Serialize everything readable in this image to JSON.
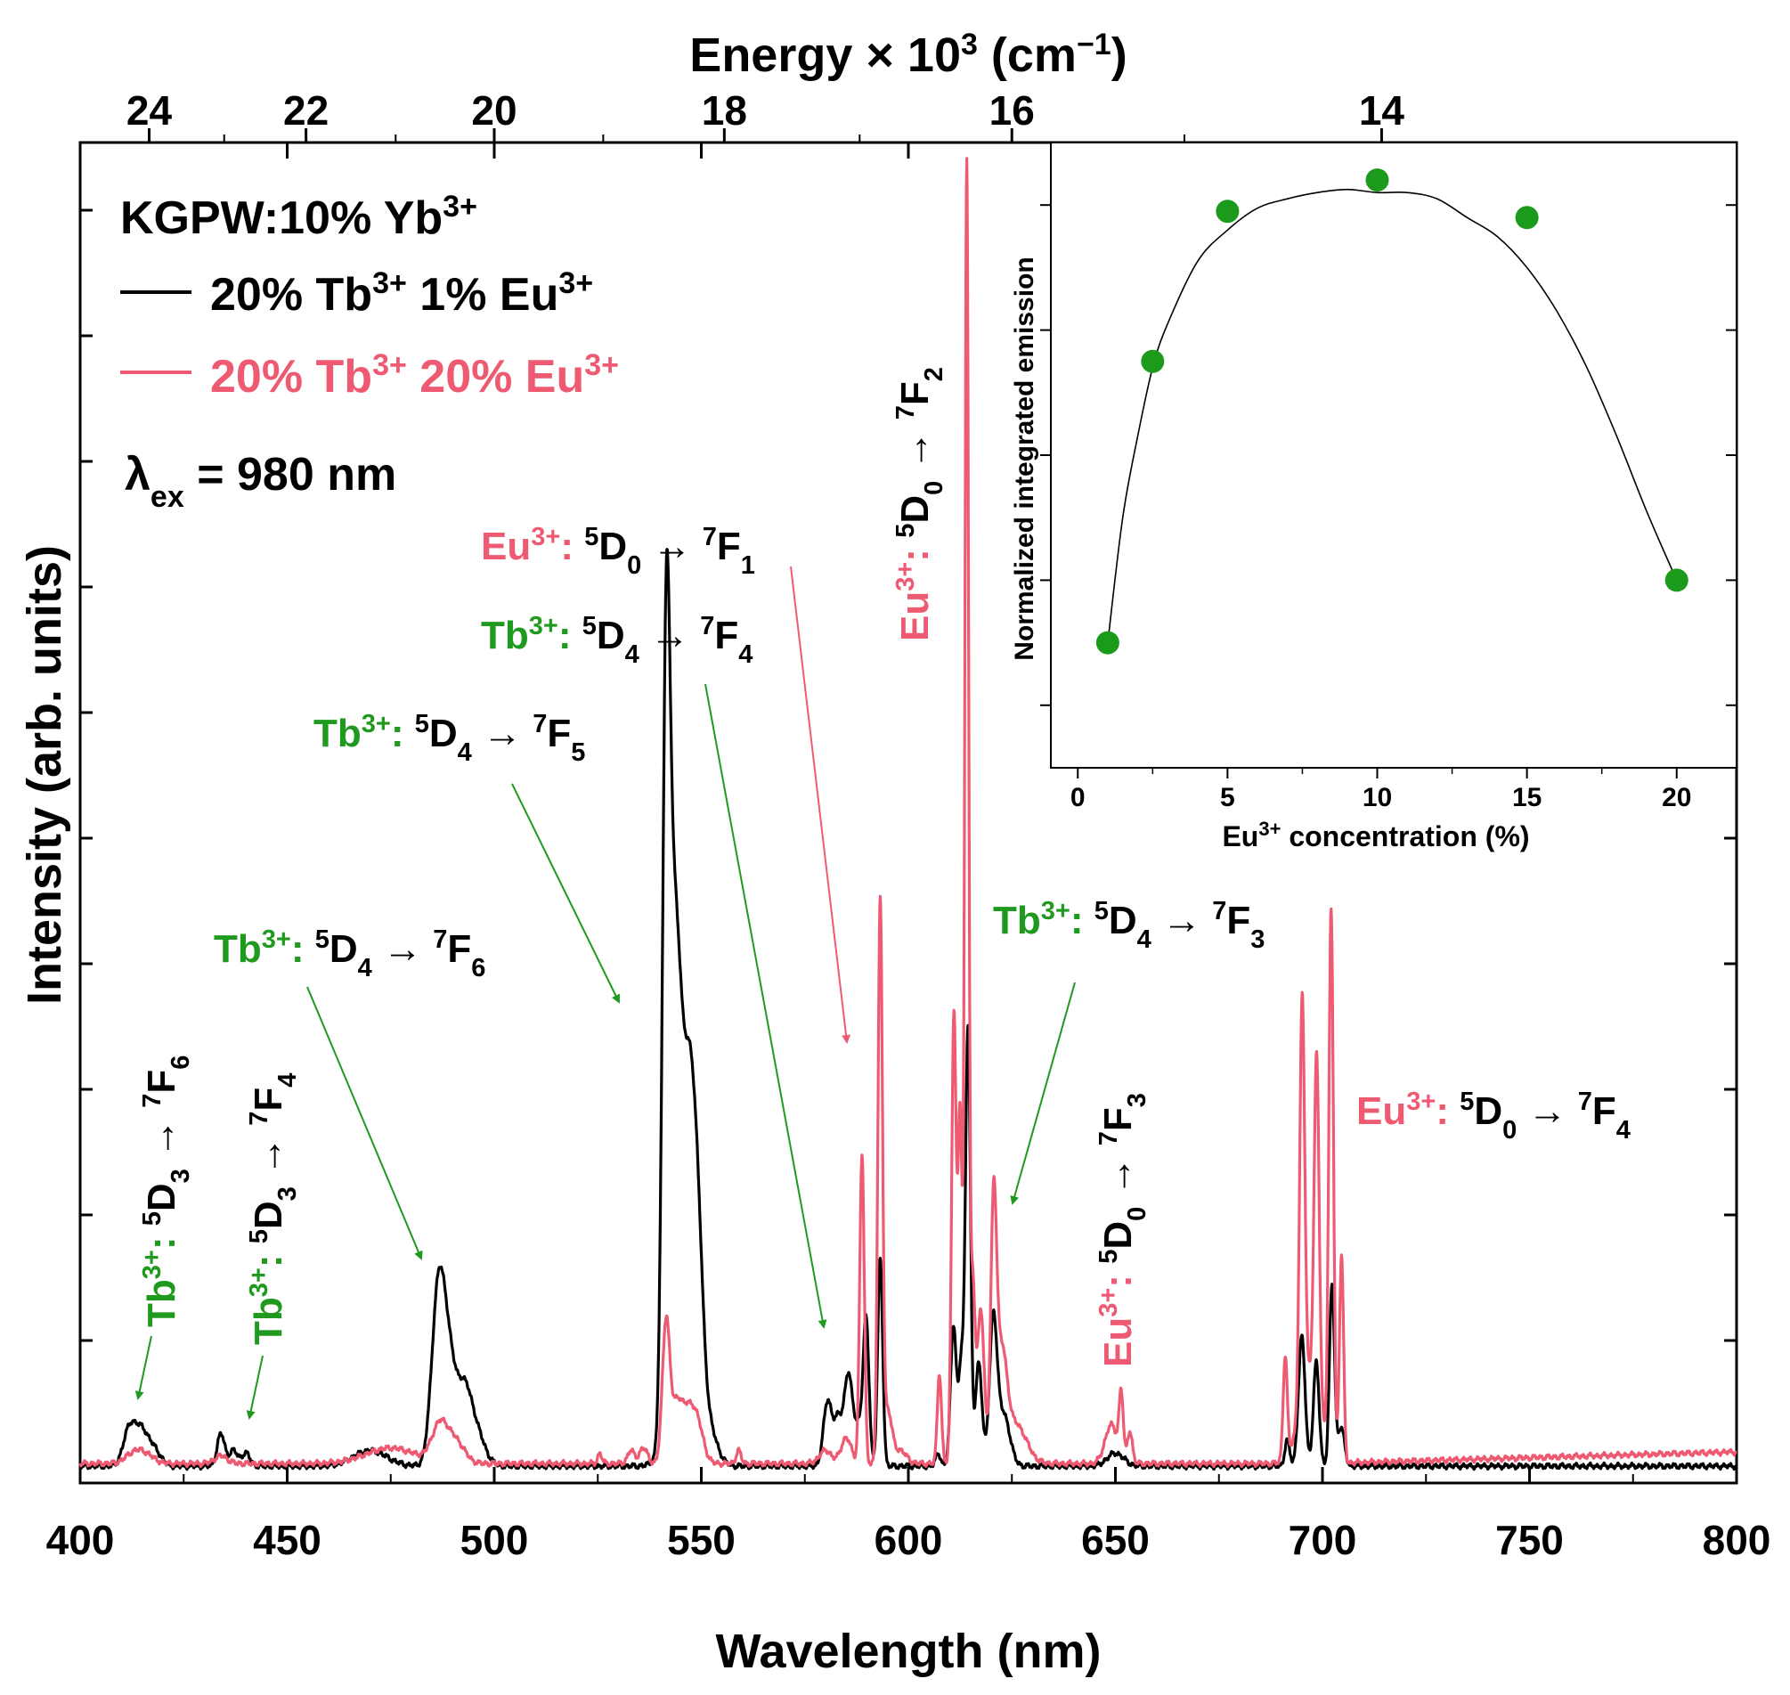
{
  "colors": {
    "black_series": "#000000",
    "red_series": "#ee5a72",
    "tb_label": "#1f9a1f",
    "eu_label": "#ee5a72",
    "inset_points": "#1b9a1b"
  },
  "chart_data": [
    {
      "type": "line",
      "title": "",
      "xlabel": "Wavelength (nm)",
      "ylabel": "Intensity (arb. units)",
      "top_axis_label_parts": {
        "base": "Energy × 10",
        "sup": "3",
        "unit": " (cm",
        "unit_sup": "−1",
        "close": ")"
      },
      "xlim": [
        400,
        800
      ],
      "ylim": [
        0,
        1.0
      ],
      "xticks": [
        "400",
        "450",
        "500",
        "550",
        "600",
        "650",
        "700",
        "750",
        "800"
      ],
      "top_ticks": [
        "24",
        "22",
        "20",
        "18",
        "16",
        "14"
      ],
      "legend": {
        "title_parts": [
          "KGPW:10% Yb",
          "3+"
        ],
        "entries": [
          {
            "parts": [
              "20% Tb",
              "3+",
              " 1% Eu",
              "3+"
            ]
          },
          {
            "parts": [
              "20% Tb",
              "3+",
              " 20% Eu",
              "3+"
            ]
          }
        ],
        "excitation": {
          "lambda": "λ",
          "sub": "ex",
          "rest": " = 980 nm"
        }
      },
      "series": [
        {
          "name": "20% Tb3+ 1% Eu3+",
          "color": "#000000",
          "peaks": [
            [
              412,
              0.03,
              1.5
            ],
            [
              415,
              0.025,
              1.5
            ],
            [
              418,
              0.012,
              1.5
            ],
            [
              434,
              0.025,
              0.9
            ],
            [
              437,
              0.012,
              1.0
            ],
            [
              440,
              0.01,
              1.0
            ],
            [
              470,
              0.012,
              4.0
            ],
            [
              486.5,
              0.135,
              1.6
            ],
            [
              489,
              0.06,
              1.5
            ],
            [
              492.5,
              0.06,
              2.0
            ],
            [
              496,
              0.02,
              2.0
            ],
            [
              541.5,
              0.58,
              0.9
            ],
            [
              543,
              0.2,
              1.0
            ],
            [
              544.5,
              0.22,
              1.2
            ],
            [
              547,
              0.15,
              1.2
            ],
            [
              549,
              0.13,
              1.3
            ],
            [
              546,
              0.12,
              3.0
            ],
            [
              552,
              0.02,
              2.0
            ],
            [
              580.5,
              0.05,
              1.0
            ],
            [
              583,
              0.035,
              1.0
            ],
            [
              585.5,
              0.07,
              1.0
            ],
            [
              588,
              0.03,
              1.0
            ],
            [
              589.8,
              0.11,
              0.7
            ],
            [
              593.2,
              0.16,
              0.6
            ],
            [
              607.2,
              0.01,
              0.6
            ],
            [
              610.9,
              0.11,
              0.7
            ],
            [
              612.8,
              0.08,
              0.6
            ],
            [
              614.4,
              0.34,
              0.6
            ],
            [
              617,
              0.08,
              0.8
            ],
            [
              620.5,
              0.11,
              0.9
            ],
            [
              623,
              0.04,
              1.5
            ],
            [
              650,
              0.01,
              2.0
            ],
            [
              691.5,
              0.02,
              0.6
            ],
            [
              695,
              0.1,
              0.8
            ],
            [
              698.5,
              0.08,
              0.7
            ],
            [
              702.3,
              0.14,
              0.6
            ],
            [
              704.5,
              0.03,
              0.8
            ]
          ]
        },
        {
          "name": "20% Tb3+ 20% Eu3+",
          "color": "#ee5a72",
          "peaks": [
            [
              413,
              0.008,
              2.0
            ],
            [
              416,
              0.006,
              2.0
            ],
            [
              434,
              0.006,
              1.5
            ],
            [
              475,
              0.012,
              6.0
            ],
            [
              487,
              0.03,
              2.0
            ],
            [
              491,
              0.015,
              2.0
            ],
            [
              525.5,
              0.008,
              0.5
            ],
            [
              533,
              0.01,
              0.8
            ],
            [
              536,
              0.012,
              1.0
            ],
            [
              541.5,
              0.11,
              0.9
            ],
            [
              544,
              0.04,
              1.2
            ],
            [
              546.5,
              0.035,
              1.5
            ],
            [
              549,
              0.03,
              1.5
            ],
            [
              559,
              0.01,
              0.6
            ],
            [
              580,
              0.01,
              1.5
            ],
            [
              585,
              0.02,
              1.2
            ],
            [
              588.8,
              0.24,
              0.55
            ],
            [
              593.2,
              0.43,
              0.55
            ],
            [
              595,
              0.04,
              1.0
            ],
            [
              598,
              0.01,
              1.5
            ],
            [
              607.5,
              0.07,
              0.5
            ],
            [
              611,
              0.35,
              0.55
            ],
            [
              612.5,
              0.27,
              0.5
            ],
            [
              614.1,
              1.0,
              0.45
            ],
            [
              615.5,
              0.14,
              0.6
            ],
            [
              617.5,
              0.12,
              0.8
            ],
            [
              620.6,
              0.19,
              0.7
            ],
            [
              622.5,
              0.08,
              1.3
            ],
            [
              626,
              0.03,
              2.5
            ],
            [
              649,
              0.03,
              1.5
            ],
            [
              651.4,
              0.05,
              0.5
            ],
            [
              653.5,
              0.025,
              0.6
            ],
            [
              691,
              0.08,
              0.5
            ],
            [
              695.1,
              0.31,
              0.6
            ],
            [
              698.6,
              0.26,
              0.6
            ],
            [
              702.1,
              0.42,
              0.55
            ],
            [
              704.6,
              0.16,
              0.5
            ],
            [
              697,
              0.07,
              2.5
            ]
          ]
        }
      ],
      "annotations": [
        {
          "ion": "Tb",
          "ion_sup": "3+",
          "colon": ": ",
          "upper_sup": "5",
          "upper": "D",
          "upper_sub": "4",
          "arrow": " → ",
          "lower_sup": "7",
          "lower": "F",
          "lower_sub": "6",
          "color": "tb",
          "target_nm": 486.5
        },
        {
          "ion": "Tb",
          "ion_sup": "3+",
          "colon": ": ",
          "upper_sup": "5",
          "upper": "D",
          "upper_sub": "4",
          "arrow": " → ",
          "lower_sup": "7",
          "lower": "F",
          "lower_sub": "5",
          "color": "tb",
          "target_nm": 541.5
        },
        {
          "ion": "Tb",
          "ion_sup": "3+",
          "colon": ": ",
          "upper_sup": "5",
          "upper": "D",
          "upper_sub": "4",
          "arrow": " → ",
          "lower_sup": "7",
          "lower": "F",
          "lower_sub": "4",
          "color": "tb",
          "target_nm": 583
        },
        {
          "ion": "Eu",
          "ion_sup": "3+",
          "colon": ": ",
          "upper_sup": "5",
          "upper": "D",
          "upper_sub": "0",
          "arrow": " → ",
          "lower_sup": "7",
          "lower": "F",
          "lower_sub": "1",
          "color": "eu",
          "target_nm": 590
        },
        {
          "ion": "Tb",
          "ion_sup": "3+",
          "colon": ": ",
          "upper_sup": "5",
          "upper": "D",
          "upper_sub": "4",
          "arrow": " → ",
          "lower_sup": "7",
          "lower": "F",
          "lower_sub": "3",
          "color": "tb",
          "target_nm": 620.5
        },
        {
          "ion": "Eu",
          "ion_sup": "3+",
          "colon": ": ",
          "upper_sup": "5",
          "upper": "D",
          "upper_sub": "0",
          "arrow": " → ",
          "lower_sup": "7",
          "lower": "F",
          "lower_sub": "4",
          "color": "eu",
          "target_nm": 702
        },
        {
          "ion": "Eu",
          "ion_sup": "3+",
          "colon": ": ",
          "upper_sup": "5",
          "upper": "D",
          "upper_sub": "0",
          "arrow": " → ",
          "lower_sup": "7",
          "lower": "F",
          "lower_sub": "2",
          "color": "eu",
          "target_nm": 614,
          "vertical": true
        },
        {
          "ion": "Eu",
          "ion_sup": "3+",
          "colon": ": ",
          "upper_sup": "5",
          "upper": "D",
          "upper_sub": "0",
          "arrow": " → ",
          "lower_sup": "7",
          "lower": "F",
          "lower_sub": "3",
          "color": "eu",
          "target_nm": 651,
          "vertical": true
        },
        {
          "ion": "Tb",
          "ion_sup": "3+",
          "colon": ": ",
          "upper_sup": "5",
          "upper": "D",
          "upper_sub": "3",
          "arrow": " → ",
          "lower_sup": "7",
          "lower": "F",
          "lower_sub": "6",
          "color": "tb",
          "target_nm": 413,
          "vertical": true
        },
        {
          "ion": "Tb",
          "ion_sup": "3+",
          "colon": ": ",
          "upper_sup": "5",
          "upper": "D",
          "upper_sub": "3",
          "arrow": " → ",
          "lower_sup": "7",
          "lower": "F",
          "lower_sub": "4",
          "color": "tb",
          "target_nm": 439,
          "vertical": true
        }
      ]
    },
    {
      "type": "scatter",
      "title": "",
      "xlabel_parts": [
        "Eu",
        "3+",
        " concentration (%)"
      ],
      "ylabel": "Normalized integrated emission",
      "xlim": [
        -0.9,
        22
      ],
      "ylim": [
        0.1,
        1.1
      ],
      "xticks": [
        "0",
        "5",
        "10",
        "15",
        "20"
      ],
      "x": [
        1,
        2.5,
        5,
        10,
        15,
        20
      ],
      "y": [
        0.3,
        0.75,
        0.99,
        1.04,
        0.98,
        0.4
      ],
      "fit_curve": {
        "x": [
          1,
          1.5,
          2,
          2.5,
          3,
          4,
          5,
          6,
          7,
          8,
          9,
          10,
          11,
          12,
          13,
          14,
          15,
          16,
          17,
          18,
          19,
          20
        ],
        "y": [
          0.3,
          0.5,
          0.63,
          0.74,
          0.81,
          0.91,
          0.96,
          0.995,
          1.01,
          1.02,
          1.025,
          1.02,
          1.02,
          1.01,
          0.98,
          0.95,
          0.9,
          0.83,
          0.74,
          0.63,
          0.51,
          0.4
        ]
      }
    }
  ]
}
